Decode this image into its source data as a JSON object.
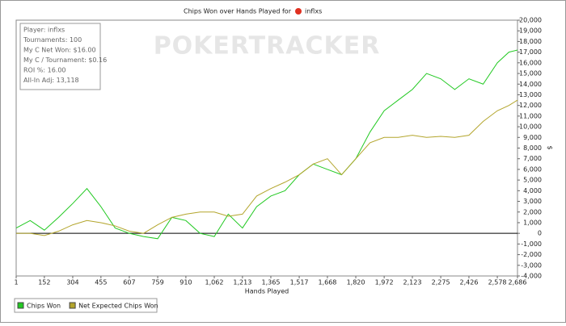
{
  "chart_data": {
    "type": "line",
    "title": "Chips Won over Hands Played for",
    "title_player": "inflxs",
    "watermark": "POKERTRACKER",
    "info": [
      "Player: inflxs",
      "Tournaments: 100",
      "My C Net Won: $16.00",
      "My C / Tournament: $0.16",
      "ROI %: 16.00",
      "All-In Adj: 13,118"
    ],
    "x_label": "Hands Played",
    "y_label": "$",
    "x": [
      1,
      76,
      152,
      228,
      304,
      380,
      455,
      531,
      607,
      683,
      759,
      835,
      910,
      986,
      1062,
      1137,
      1213,
      1289,
      1365,
      1441,
      1517,
      1592,
      1668,
      1744,
      1820,
      1896,
      1972,
      2047,
      2123,
      2199,
      2275,
      2350,
      2426,
      2502,
      2578,
      2640,
      2686
    ],
    "series": [
      {
        "name": "Chips Won",
        "color": "#22c922",
        "values": [
          500,
          1200,
          300,
          1500,
          2800,
          4200,
          2500,
          500,
          0,
          -300,
          -500,
          1500,
          1200,
          0,
          -300,
          1800,
          500,
          2500,
          3500,
          4000,
          5500,
          6500,
          6000,
          5500,
          7000,
          9500,
          11500,
          12500,
          13500,
          15000,
          14500,
          13500,
          14500,
          14000,
          16000,
          17000,
          17200
        ]
      },
      {
        "name": "Net Expected Chips Won",
        "color": "#b3a52c",
        "values": [
          0,
          0,
          -200,
          200,
          800,
          1200,
          1000,
          700,
          200,
          0,
          800,
          1500,
          1800,
          2000,
          2000,
          1600,
          1800,
          3500,
          4200,
          4800,
          5500,
          6500,
          7000,
          5500,
          7000,
          8500,
          9000,
          9000,
          9200,
          9000,
          9100,
          9000,
          9200,
          10500,
          11500,
          12000,
          12500
        ]
      }
    ],
    "xlim": [
      1,
      2686
    ],
    "xticks": [
      1,
      152,
      304,
      455,
      607,
      759,
      910,
      {
        "value": 1062,
        "label": "1,062"
      },
      {
        "value": 1213,
        "label": "1,213"
      },
      {
        "value": 1365,
        "label": "1,365"
      },
      {
        "value": 1517,
        "label": "1,517"
      },
      {
        "value": 1668,
        "label": "1,668"
      },
      {
        "value": 1820,
        "label": "1,820"
      },
      {
        "value": 1972,
        "label": "1,972"
      },
      {
        "value": 2123,
        "label": "2,123"
      },
      {
        "value": 2275,
        "label": "2,275"
      },
      {
        "value": 2426,
        "label": "2,426"
      },
      {
        "value": 2578,
        "label": "2,578"
      },
      {
        "value": 2686,
        "label": "2,686"
      }
    ],
    "ylim": [
      -4000,
      20000
    ],
    "yticks": [
      {
        "value": -4000,
        "label": "-4,000"
      },
      {
        "value": -3000,
        "label": "-3,000"
      },
      {
        "value": -2000,
        "label": "-2,000"
      },
      {
        "value": -1000,
        "label": "-1,000"
      },
      0,
      {
        "value": 1000,
        "label": "1,000"
      },
      {
        "value": 2000,
        "label": "2,000"
      },
      {
        "value": 3000,
        "label": "3,000"
      },
      {
        "value": 4000,
        "label": "4,000"
      },
      {
        "value": 5000,
        "label": "5,000"
      },
      {
        "value": 6000,
        "label": "6,000"
      },
      {
        "value": 7000,
        "label": "7,000"
      },
      {
        "value": 8000,
        "label": "8,000"
      },
      {
        "value": 9000,
        "label": "9,000"
      },
      {
        "value": 10000,
        "label": "10,000"
      },
      {
        "value": 11000,
        "label": "11,000"
      },
      {
        "value": 12000,
        "label": "12,000"
      },
      {
        "value": 13000,
        "label": "13,000"
      },
      {
        "value": 14000,
        "label": "14,000"
      },
      {
        "value": 15000,
        "label": "15,000"
      },
      {
        "value": 16000,
        "label": "16,000"
      },
      {
        "value": 17000,
        "label": "17,000"
      },
      {
        "value": 18000,
        "label": "18,000"
      },
      {
        "value": 19000,
        "label": "19,000"
      },
      {
        "value": 20000,
        "label": "20,000"
      }
    ]
  }
}
